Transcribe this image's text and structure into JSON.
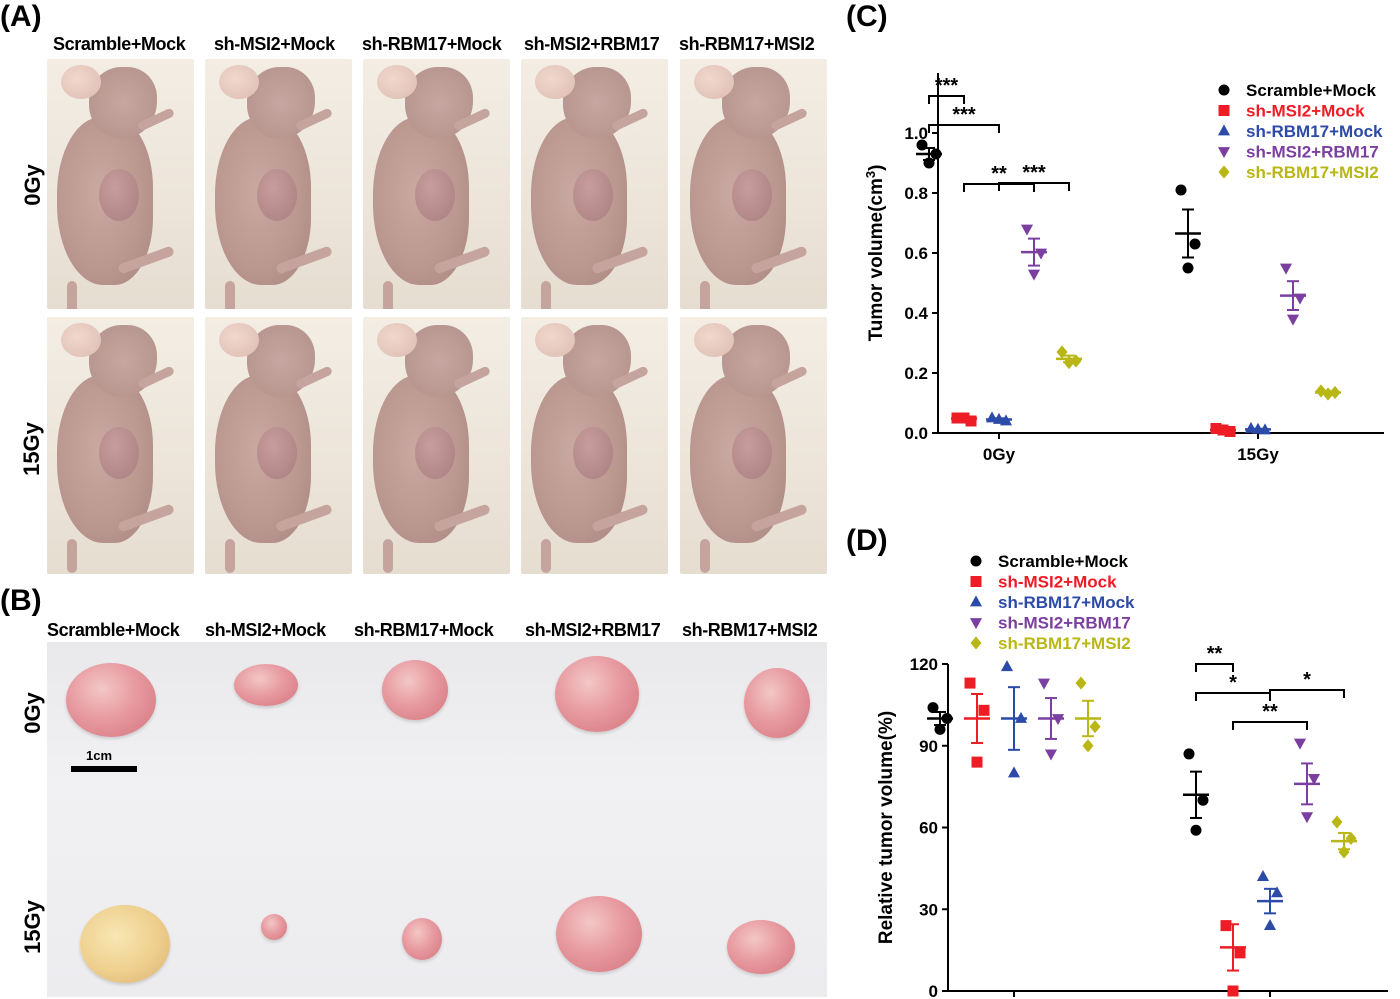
{
  "panels": {
    "A": "(A)",
    "B": "(B)",
    "C": "(C)",
    "D": "(D)"
  },
  "groups": [
    "Scramble+Mock",
    "sh-MSI2+Mock",
    "sh-RBM17+Mock",
    "sh-MSI2+RBM17",
    "sh-RBM17+MSI2"
  ],
  "doses": [
    "0Gy",
    "15Gy"
  ],
  "scale_label": "1cm",
  "colors": [
    "#000000",
    "#ee1c25",
    "#2c4ba8",
    "#7b3fa0",
    "#b9b715"
  ],
  "markers": [
    "circle",
    "square",
    "triangle-up",
    "triangle-down",
    "diamond"
  ],
  "chart_data": [
    {
      "type": "scatter",
      "panel": "C",
      "title": "",
      "xlabel": "",
      "ylabel": "Tumor volume(cm",
      "ylabel_superscript": "3",
      "ylabel_suffix": ")",
      "ylim": [
        0,
        1.2
      ],
      "yticks": [
        "0.0",
        "0.2",
        "0.4",
        "0.6",
        "0.8",
        "1.0"
      ],
      "categories": [
        "0Gy",
        "15Gy"
      ],
      "legend_position": "top-right",
      "series": [
        {
          "name": "Scramble+Mock",
          "points": [
            [
              0.96,
              0.93,
              0.9
            ],
            [
              0.81,
              0.63,
              0.55
            ]
          ],
          "mean": [
            0.93,
            0.665
          ],
          "sem": [
            0.02,
            0.08
          ]
        },
        {
          "name": "sh-MSI2+Mock",
          "points": [
            [
              0.05,
              0.04,
              0.05
            ],
            [
              0.015,
              0.005,
              0.01
            ]
          ],
          "mean": [
            0.048,
            0.01
          ],
          "sem": [
            0.004,
            0.003
          ]
        },
        {
          "name": "sh-RBM17+Mock",
          "points": [
            [
              0.05,
              0.04,
              0.045
            ],
            [
              0.015,
              0.01,
              0.012
            ]
          ],
          "mean": [
            0.045,
            0.012
          ],
          "sem": [
            0.004,
            0.002
          ]
        },
        {
          "name": "sh-MSI2+RBM17",
          "points": [
            [
              0.68,
              0.6,
              0.53
            ],
            [
              0.55,
              0.45,
              0.38
            ]
          ],
          "mean": [
            0.603,
            0.458
          ],
          "sem": [
            0.045,
            0.048
          ]
        },
        {
          "name": "sh-RBM17+MSI2",
          "points": [
            [
              0.27,
              0.24,
              0.235
            ],
            [
              0.14,
              0.135,
              0.13
            ]
          ],
          "mean": [
            0.247,
            0.135
          ],
          "sem": [
            0.011,
            0.004
          ]
        }
      ],
      "significance": [
        {
          "category": "0Gy",
          "from_series": 0,
          "to_series": 1,
          "label": "***"
        },
        {
          "category": "0Gy",
          "from_series": 0,
          "to_series": 2,
          "label": "***"
        },
        {
          "category": "0Gy",
          "from_series": 1,
          "to_series": 3,
          "label": "**"
        },
        {
          "category": "0Gy",
          "from_series": 2,
          "to_series": 4,
          "label": "***"
        }
      ]
    },
    {
      "type": "scatter",
      "panel": "D",
      "title": "",
      "xlabel": "",
      "ylabel": "Relative tumor volume(%)",
      "ylim": [
        0,
        120
      ],
      "yticks": [
        "0",
        "30",
        "60",
        "90",
        "120"
      ],
      "categories": [
        "0Gy",
        "15Gy"
      ],
      "legend_position": "top-left",
      "series": [
        {
          "name": "Scramble+Mock",
          "points": [
            [
              104,
              100,
              96
            ],
            [
              87,
              70,
              59
            ]
          ],
          "mean": [
            100,
            72
          ],
          "sem": [
            2.4,
            8.5
          ]
        },
        {
          "name": "sh-MSI2+Mock",
          "points": [
            [
              113,
              103,
              84
            ],
            [
              24,
              14,
              0
            ]
          ],
          "mean": [
            100,
            16
          ],
          "sem": [
            9,
            8.5
          ]
        },
        {
          "name": "sh-RBM17+Mock",
          "points": [
            [
              119,
              100,
              80
            ],
            [
              42,
              36,
              24
            ]
          ],
          "mean": [
            100,
            33
          ],
          "sem": [
            11.5,
            4.5
          ]
        },
        {
          "name": "sh-MSI2+RBM17",
          "points": [
            [
              113,
              100,
              87
            ],
            [
              91,
              78,
              64
            ]
          ],
          "mean": [
            100,
            76
          ],
          "sem": [
            7.5,
            7.5
          ]
        },
        {
          "name": "sh-RBM17+MSI2",
          "points": [
            [
              113,
              97,
              90
            ],
            [
              62,
              56,
              51
            ]
          ],
          "mean": [
            100,
            55
          ],
          "sem": [
            6.5,
            3
          ]
        }
      ],
      "significance": [
        {
          "category": "15Gy",
          "from_series": 0,
          "to_series": 1,
          "label": "**"
        },
        {
          "category": "15Gy",
          "from_series": 0,
          "to_series": 2,
          "label": "*"
        },
        {
          "category": "15Gy",
          "from_series": 1,
          "to_series": 3,
          "label": "**"
        },
        {
          "category": "15Gy",
          "from_series": 2,
          "to_series": 4,
          "label": "*"
        }
      ]
    }
  ]
}
